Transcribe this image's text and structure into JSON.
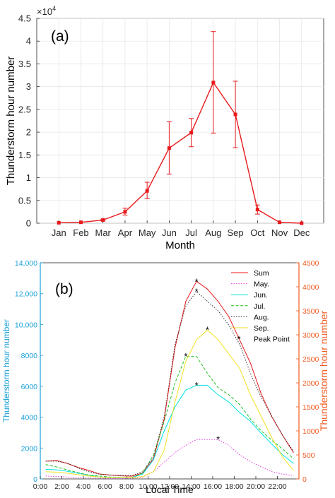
{
  "chart_data": [
    {
      "type": "line",
      "panel_label": "(a)",
      "title": "",
      "xlabel": "Month",
      "ylabel": "Thunderstorm hour number",
      "yexponent_label": "×10",
      "yexponent_power": "4",
      "categories": [
        "Jan",
        "Feb",
        "Mar",
        "Apr",
        "May",
        "Jun",
        "Jul",
        "Aug",
        "Sep",
        "Oct",
        "Nov",
        "Dec"
      ],
      "ylim": [
        0,
        4.5
      ],
      "yticks": [
        "0",
        "0.5",
        "1",
        "1.5",
        "2",
        "2.5",
        "3",
        "3.5",
        "4",
        "4.5"
      ],
      "grid": true,
      "color": "#e8191b",
      "series": [
        {
          "values": [
            0.01,
            0.02,
            0.07,
            0.25,
            0.71,
            1.65,
            1.99,
            3.09,
            2.39,
            0.3,
            0.02,
            0.0
          ],
          "err_low": [
            0.0,
            0.0,
            0.05,
            0.18,
            0.54,
            1.08,
            1.68,
            1.98,
            1.66,
            0.2,
            0.0,
            0.0
          ],
          "err_high": [
            0.0,
            0.0,
            0.09,
            0.33,
            0.9,
            2.23,
            2.3,
            4.21,
            3.12,
            0.4,
            0.0,
            0.0
          ]
        }
      ]
    },
    {
      "type": "line",
      "panel_label": "(b)",
      "title": "",
      "xlabel": "Local Time",
      "ylabel_left": "Thunderstorm hour number",
      "ylabel_right": "Thunderstorm hour number",
      "left_axis_color": "#1aa0d8",
      "right_axis_color": "#f05a22",
      "xlim": [
        0,
        24
      ],
      "xticks": [
        "0:00",
        "2:00",
        "4:00",
        "6:00",
        "8:00",
        "10:00",
        "12:00",
        "14:00",
        "16:00",
        "18:00",
        "20:00",
        "22:00"
      ],
      "ylim_left": [
        0,
        14000
      ],
      "yticks_left": [
        "0",
        "2000",
        "4000",
        "6000",
        "8000",
        "10,000",
        "12,000",
        "14,000"
      ],
      "ylim_right": [
        0,
        4500
      ],
      "yticks_right": [
        "0",
        "500",
        "1000",
        "1500",
        "2000",
        "2500",
        "3000",
        "3500",
        "4000",
        "4500"
      ],
      "legend_position": "top-right",
      "x": [
        0.5,
        1.5,
        2.5,
        3.5,
        4.5,
        5.5,
        6.5,
        7.5,
        8.5,
        9.5,
        10.5,
        11.5,
        12.5,
        13.5,
        14.5,
        15.5,
        16.5,
        17.5,
        18.5,
        19.5,
        20.5,
        21.5,
        22.5,
        23.5
      ],
      "series": [
        {
          "name": "Sum",
          "axis": "left",
          "color": "#e8191b",
          "dash": "solid",
          "values": [
            1150,
            1200,
            1000,
            750,
            550,
            320,
            250,
            200,
            180,
            380,
            1300,
            3900,
            8500,
            11500,
            12800,
            12300,
            11500,
            10500,
            9000,
            7500,
            5500,
            4000,
            2800,
            1700
          ]
        },
        {
          "name": "May.",
          "axis": "right",
          "color": "#e040e0",
          "dash": "dot",
          "values": [
            60,
            50,
            40,
            30,
            20,
            15,
            10,
            10,
            15,
            40,
            150,
            350,
            550,
            700,
            820,
            820,
            820,
            700,
            500,
            360,
            250,
            150,
            100,
            70
          ]
        },
        {
          "name": "Jun.",
          "axis": "right",
          "color": "#00e0e0",
          "dash": "solid",
          "values": [
            200,
            190,
            160,
            120,
            80,
            40,
            30,
            25,
            30,
            100,
            400,
            1000,
            1500,
            1850,
            1950,
            1950,
            1750,
            1600,
            1380,
            1200,
            950,
            720,
            500,
            320
          ]
        },
        {
          "name": "Jul.",
          "axis": "right",
          "color": "#20c020",
          "dash": "dash",
          "values": [
            300,
            250,
            190,
            130,
            80,
            60,
            40,
            30,
            30,
            120,
            500,
            1200,
            2000,
            2550,
            2550,
            2200,
            1900,
            1750,
            1550,
            1250,
            1000,
            800,
            620,
            420
          ]
        },
        {
          "name": "Aug.",
          "axis": "right",
          "color": "#303030",
          "dash": "dot",
          "values": [
            370,
            370,
            330,
            230,
            150,
            100,
            80,
            70,
            70,
            150,
            450,
            1300,
            2800,
            3600,
            3900,
            3700,
            3500,
            3200,
            2800,
            2200,
            1700,
            1300,
            900,
            570
          ]
        },
        {
          "name": "Sep.",
          "axis": "right",
          "color": "#f0e020",
          "dash": "solid",
          "values": [
            150,
            140,
            120,
            90,
            60,
            40,
            30,
            25,
            25,
            50,
            150,
            600,
            1600,
            2450,
            2900,
            3100,
            2900,
            2600,
            2300,
            1750,
            1300,
            850,
            450,
            180
          ]
        },
        {
          "name": "Peak Point",
          "axis": "right",
          "color": "#000000",
          "marker": "*",
          "x": [
            14.5,
            14.5,
            14.5,
            16.5,
            13.5,
            15.5
          ],
          "values": [
            4100,
            3900,
            1950,
            820,
            2550,
            3100
          ]
        }
      ]
    }
  ]
}
